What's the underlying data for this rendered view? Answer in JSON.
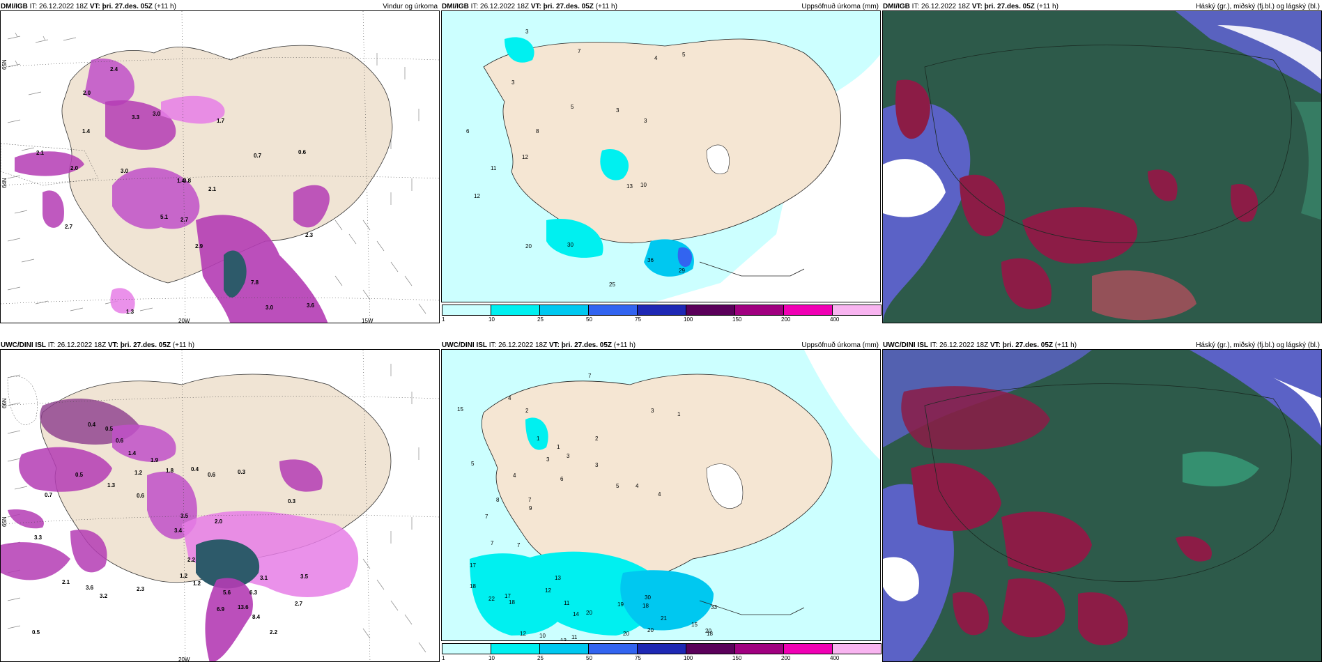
{
  "panels": {
    "top_left": {
      "model": "DMI/IGB",
      "it": "26.12.2022 18Z",
      "vt": "þri. 27.des. 05Z",
      "lead": "(+11 h)",
      "product": "Vindur og úrkoma"
    },
    "top_mid": {
      "model": "DMI/IGB",
      "it": "26.12.2022 18Z",
      "vt": "þri. 27.des. 05Z",
      "lead": "(+11 h)",
      "product": "Uppsöfnuð úrkoma (mm)"
    },
    "top_right": {
      "model": "DMI/IGB",
      "it": "26.12.2022 18Z",
      "vt": "þri. 27.des. 05Z",
      "lead": "(+11 h)",
      "product": "Háský (gr.), miðský (fj.bl.) og lágský (bl.)"
    },
    "bot_left": {
      "model": "UWC/DINI ISL",
      "it": "26.12.2022 18Z",
      "vt": "þri. 27.des. 05Z",
      "lead": "(+11 h)",
      "product": "Vindur og úrkoma"
    },
    "bot_mid": {
      "model": "UWC/DINI ISL",
      "it": "26.12.2022 18Z",
      "vt": "þri. 27.des. 05Z",
      "lead": "(+11 h)",
      "product": "Uppsöfnuð úrkoma (mm)"
    },
    "bot_right": {
      "model": "UWC/DINI ISL",
      "it": "26.12.2022 18Z",
      "vt": "þri. 27.des. 05Z",
      "lead": "(+11 h)",
      "product": "Háský (gr.), miðský (fj.bl.) og lágský (bl.)"
    }
  },
  "labels": {
    "it": "IT:",
    "vt": "VT:"
  },
  "axes": {
    "lon_20w": "20W",
    "lon_15w": "15W",
    "lat_66n": "66N",
    "lat_65n": "65N",
    "lat_64n": "64N"
  },
  "colorbar": {
    "ticks": [
      "1",
      "10",
      "25",
      "50",
      "75",
      "100",
      "150",
      "200",
      "400"
    ],
    "colors": [
      "#ccffff",
      "#00f0f0",
      "#00c8f0",
      "#3264f0",
      "#1e28b4",
      "#5a005a",
      "#a00080",
      "#f000b4",
      "#f8b4f0"
    ]
  },
  "top_left_values": [
    "2.4",
    "2.0",
    "3.3",
    "3.0",
    "1.4",
    "2.1",
    "2.0",
    "3.0",
    "1.7",
    "3.8",
    "1.4",
    "0.7",
    "0.6",
    "2.7",
    "2.1",
    "5.1",
    "2.7",
    "2.9",
    "7.8",
    "3.0",
    "3.6",
    "1.3",
    "2.3"
  ],
  "top_mid_values": [
    "3",
    "7",
    "4",
    "5",
    "3",
    "5",
    "3",
    "3",
    "6",
    "8",
    "12",
    "11",
    "12",
    "10",
    "20",
    "30",
    "13",
    "36",
    "25",
    "29"
  ],
  "bot_left_values": [
    "0.4",
    "0.5",
    "0.6",
    "1.4",
    "1.9",
    "1.8",
    "1.2",
    "1.3",
    "0.5",
    "0.4",
    "0.6",
    "0.3",
    "0.3",
    "0.7",
    "0.6",
    "3.5",
    "2.0",
    "3.4",
    "1.2",
    "2.2",
    "2.3",
    "3.6",
    "2.1",
    "3.2",
    "1.2",
    "5.6",
    "6.9",
    "13.6",
    "6.3",
    "8.4",
    "3.1",
    "2.7",
    "2.2",
    "3.5",
    "0.5",
    "3.3"
  ],
  "bot_mid_values": [
    "7",
    "4",
    "2",
    "2",
    "3",
    "1",
    "15",
    "5",
    "1",
    "1",
    "3",
    "3",
    "4",
    "3",
    "8",
    "6",
    "9",
    "7",
    "7",
    "7",
    "7",
    "5",
    "4",
    "4",
    "13",
    "11",
    "17",
    "18",
    "17",
    "22",
    "18",
    "12",
    "14",
    "13",
    "20",
    "19",
    "18",
    "33",
    "30",
    "21",
    "20",
    "15",
    "11",
    "12",
    "10",
    "20",
    "20",
    "18"
  ],
  "map_colors": {
    "land": "#f5e6d3",
    "sea_light": "#ccffff",
    "cyan": "#00f0f0",
    "purple": "#b43cb4",
    "magenta": "#e67ee6",
    "dark": "#2d5a4a",
    "maroon": "#8c1c46",
    "blue": "#6464dc"
  }
}
